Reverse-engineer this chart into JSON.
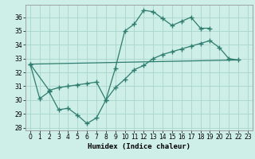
{
  "line1_points": [
    [
      0,
      32.6
    ],
    [
      1,
      30.1
    ],
    [
      2,
      30.6
    ],
    [
      3,
      29.3
    ],
    [
      4,
      29.4
    ],
    [
      5,
      28.9
    ],
    [
      6,
      28.3
    ],
    [
      7,
      28.7
    ],
    [
      8,
      30.0
    ],
    [
      9,
      32.3
    ],
    [
      10,
      35.0
    ],
    [
      11,
      35.5
    ],
    [
      12,
      36.5
    ],
    [
      13,
      36.4
    ],
    [
      14,
      35.9
    ],
    [
      15,
      35.4
    ],
    [
      16,
      35.7
    ],
    [
      17,
      36.0
    ],
    [
      18,
      35.2
    ],
    [
      19,
      35.2
    ]
  ],
  "line2_points": [
    [
      0,
      32.6
    ],
    [
      22,
      32.9
    ]
  ],
  "line3_points": [
    [
      0,
      32.6
    ],
    [
      2,
      30.7
    ],
    [
      3,
      30.9
    ],
    [
      4,
      31.0
    ],
    [
      5,
      31.1
    ],
    [
      6,
      31.2
    ],
    [
      7,
      31.3
    ],
    [
      8,
      30.0
    ],
    [
      9,
      30.9
    ],
    [
      10,
      31.5
    ],
    [
      11,
      32.2
    ],
    [
      12,
      32.5
    ],
    [
      13,
      33.0
    ],
    [
      14,
      33.3
    ],
    [
      15,
      33.5
    ],
    [
      16,
      33.7
    ],
    [
      17,
      33.9
    ],
    [
      18,
      34.1
    ],
    [
      19,
      34.3
    ],
    [
      20,
      33.8
    ],
    [
      21,
      33.0
    ],
    [
      22,
      32.9
    ]
  ],
  "color": "#2e7d6e",
  "bg_color": "#ceeee8",
  "grid_color": "#aad4cc",
  "xlabel": "Humidex (Indice chaleur)",
  "xlim": [
    -0.5,
    23.5
  ],
  "ylim": [
    27.8,
    36.9
  ],
  "yticks": [
    28,
    29,
    30,
    31,
    32,
    33,
    34,
    35,
    36
  ],
  "xticks": [
    0,
    1,
    2,
    3,
    4,
    5,
    6,
    7,
    8,
    9,
    10,
    11,
    12,
    13,
    14,
    15,
    16,
    17,
    18,
    19,
    20,
    21,
    22,
    23
  ]
}
